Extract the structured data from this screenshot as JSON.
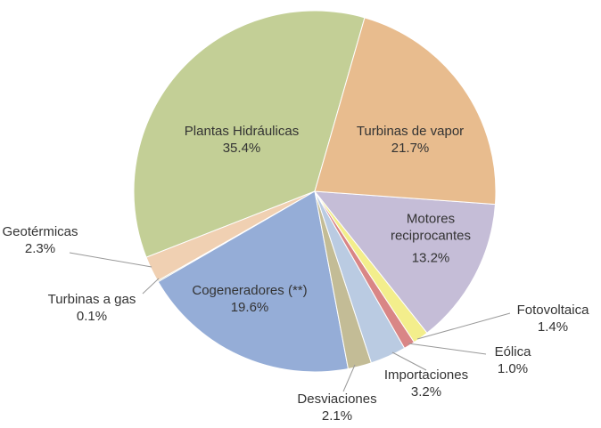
{
  "chart_data": {
    "type": "pie",
    "categories": [
      "Turbinas de vapor",
      "Motores reciprocantes",
      "Fotovoltaica",
      "Eólica",
      "Importaciones",
      "Desviaciones",
      "Cogeneradores (**)",
      "Turbinas a gas",
      "Geotérmicas",
      "Plantas Hidráulicas"
    ],
    "values": [
      21.7,
      13.2,
      1.4,
      1.0,
      3.2,
      2.1,
      19.6,
      0.1,
      2.3,
      35.4
    ],
    "value_labels": [
      "21.7%",
      "13.2%",
      "1.4%",
      "1.0%",
      "3.2%",
      "2.1%",
      "19.6%",
      "0.1%",
      "2.3%",
      "35.4%"
    ],
    "colors": [
      "#e8bc8e",
      "#c5bdd7",
      "#f3ee8c",
      "#d98686",
      "#bacbe2",
      "#c3bc96",
      "#95add7",
      "#8fa05a",
      "#f0d0b2",
      "#c3cf96"
    ]
  }
}
